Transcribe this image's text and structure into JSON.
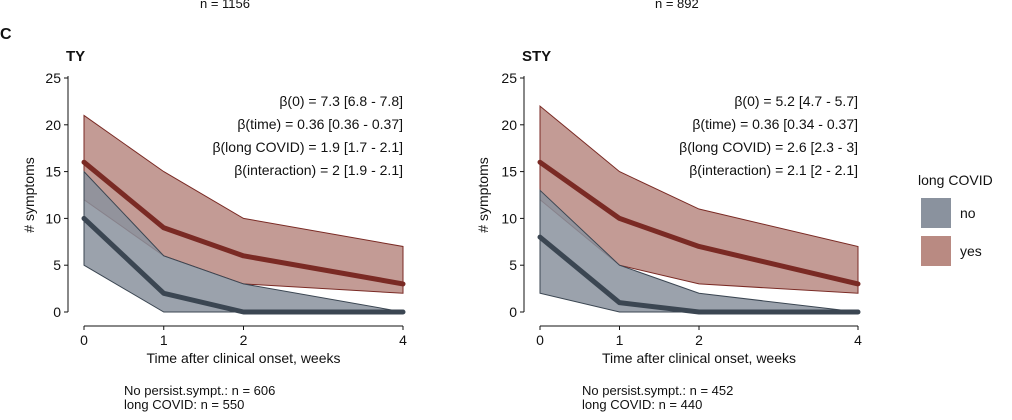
{
  "header": {
    "left_n": "n = 1156",
    "right_n": "n = 892",
    "panel_letter": "C"
  },
  "chart_data": [
    {
      "type": "area",
      "title": "TY",
      "xlabel": "Time after clinical onset, weeks",
      "ylabel": "# symptoms",
      "x": [
        0,
        1,
        2,
        4
      ],
      "xticks": [
        "0",
        "1",
        "2",
        "4"
      ],
      "ylim": [
        0,
        25
      ],
      "yticks": [
        "0",
        "5",
        "10",
        "15",
        "20",
        "25"
      ],
      "grid": false,
      "series": [
        {
          "name": "no",
          "median": [
            10,
            2,
            0,
            0
          ],
          "lower": [
            5,
            0,
            0,
            0
          ],
          "upper": [
            15,
            6,
            3,
            0
          ]
        },
        {
          "name": "yes",
          "median": [
            16,
            9,
            6,
            3
          ],
          "lower": [
            12,
            6,
            3,
            2
          ],
          "upper": [
            21,
            15,
            10,
            7
          ]
        }
      ],
      "annotations": [
        "β(0) = 7.3 [6.8 - 7.8]",
        "β(time) = 0.36 [0.36 - 0.37]",
        "β(long COVID) = 1.9 [1.7 - 2.1]",
        "β(interaction) = 2 [1.9 - 2.1]"
      ],
      "footer": [
        "No persist.sympt.: n = 606",
        "long COVID: n = 550"
      ]
    },
    {
      "type": "area",
      "title": "STY",
      "xlabel": "Time after clinical onset, weeks",
      "ylabel": "# symptoms",
      "x": [
        0,
        1,
        2,
        4
      ],
      "xticks": [
        "0",
        "1",
        "2",
        "4"
      ],
      "ylim": [
        0,
        25
      ],
      "yticks": [
        "0",
        "5",
        "10",
        "15",
        "20",
        "25"
      ],
      "grid": false,
      "series": [
        {
          "name": "no",
          "median": [
            8,
            1,
            0,
            0
          ],
          "lower": [
            2,
            0,
            0,
            0
          ],
          "upper": [
            13,
            5,
            2,
            0
          ]
        },
        {
          "name": "yes",
          "median": [
            16,
            10,
            7,
            3
          ],
          "lower": [
            12,
            5,
            3,
            2
          ],
          "upper": [
            22,
            15,
            11,
            7
          ]
        }
      ],
      "annotations": [
        "β(0) = 5.2 [4.7 - 5.7]",
        "β(time) = 0.36 [0.34 - 0.37]",
        "β(long COVID) = 2.6 [2.3 - 3]",
        "β(interaction) = 2.1 [2 - 2.1]"
      ],
      "footer": [
        "No persist.sympt.: n = 452",
        "long COVID: n = 440"
      ]
    }
  ],
  "legend": {
    "title": "long COVID",
    "items": [
      {
        "label": "no",
        "color": "#8a929e"
      },
      {
        "label": "yes",
        "color": "#b98a82"
      }
    ]
  },
  "colors": {
    "no_band": "#8a929e",
    "no_line": "#3b4652",
    "yes_band": "#b98a82",
    "yes_line": "#7a2a24"
  }
}
